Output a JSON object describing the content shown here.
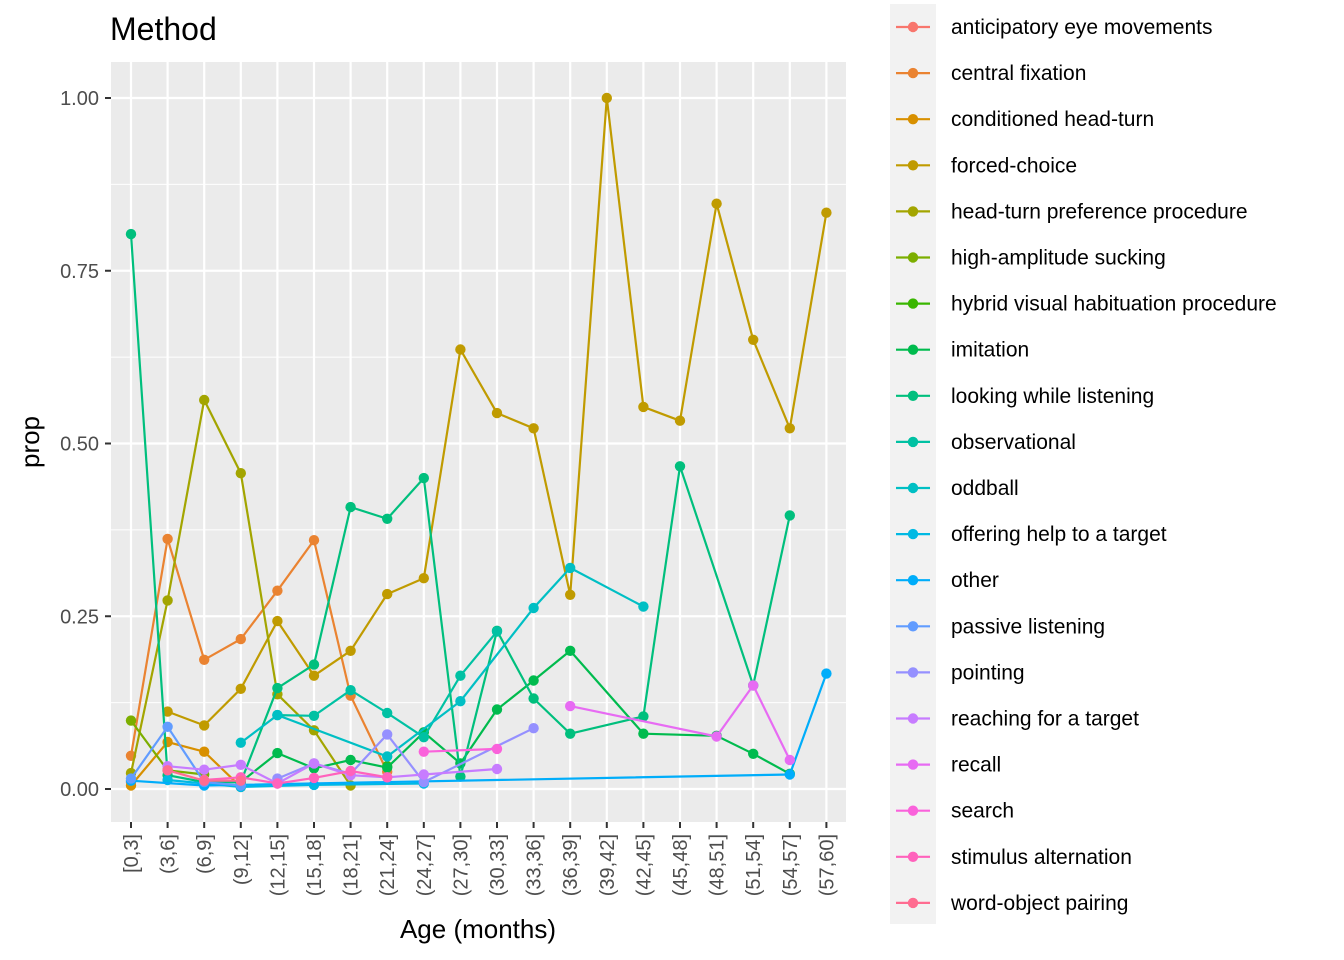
{
  "chart_data": {
    "type": "line",
    "title": "Method",
    "xlabel": "Age (months)",
    "ylabel": "prop",
    "categories": [
      "[0,3]",
      "(3,6]",
      "(6,9]",
      "(9,12]",
      "(12,15]",
      "(15,18]",
      "(18,21]",
      "(21,24]",
      "(24,27]",
      "(27,30]",
      "(30,33]",
      "(33,36]",
      "(36,39]",
      "(39,42]",
      "(42,45]",
      "(45,48]",
      "(48,51]",
      "(51,54]",
      "(54,57]",
      "(57,60]"
    ],
    "y_ticks": [
      "0.00",
      "0.25",
      "0.50",
      "0.75",
      "1.00"
    ],
    "ylim": [
      0,
      1
    ],
    "grid": true,
    "legend_position": "right",
    "series": [
      {
        "name": "anticipatory eye movements",
        "color": "#F8766D",
        "points": [
          [
            "[0,3]",
            0.01
          ]
        ]
      },
      {
        "name": "central fixation",
        "color": "#EA8331",
        "points": [
          [
            "[0,3]",
            0.048
          ],
          [
            "(3,6]",
            0.362
          ],
          [
            "(6,9]",
            0.187
          ],
          [
            "(9,12]",
            0.217
          ],
          [
            "(12,15]",
            0.287
          ],
          [
            "(15,18]",
            0.36
          ],
          [
            "(18,21]",
            0.135
          ],
          [
            "(21,24]",
            0.025
          ]
        ]
      },
      {
        "name": "conditioned head-turn",
        "color": "#D89000",
        "points": [
          [
            "[0,3]",
            0.005
          ],
          [
            "(3,6]",
            0.068
          ],
          [
            "(6,9]",
            0.054
          ],
          [
            "(9,12]",
            0.003
          ]
        ]
      },
      {
        "name": "forced-choice",
        "color": "#C09B00",
        "points": [
          [
            "(3,6]",
            0.112
          ],
          [
            "(6,9]",
            0.092
          ],
          [
            "(9,12]",
            0.145
          ],
          [
            "(12,15]",
            0.243
          ],
          [
            "(15,18]",
            0.164
          ],
          [
            "(18,21]",
            0.2
          ],
          [
            "(21,24]",
            0.282
          ],
          [
            "(24,27]",
            0.305
          ],
          [
            "(27,30]",
            0.636
          ],
          [
            "(30,33]",
            0.544
          ],
          [
            "(33,36]",
            0.522
          ],
          [
            "(36,39]",
            0.281
          ],
          [
            "(39,42]",
            1.0
          ],
          [
            "(42,45]",
            0.553
          ],
          [
            "(45,48]",
            0.533
          ],
          [
            "(48,51]",
            0.847
          ],
          [
            "(51,54]",
            0.65
          ],
          [
            "(54,57]",
            0.522
          ],
          [
            "(57,60]",
            0.834
          ]
        ]
      },
      {
        "name": "head-turn preference procedure",
        "color": "#A3A500",
        "points": [
          [
            "[0,3]",
            0.023
          ],
          [
            "(3,6]",
            0.273
          ],
          [
            "(6,9]",
            0.563
          ],
          [
            "(9,12]",
            0.457
          ],
          [
            "(12,15]",
            0.137
          ],
          [
            "(15,18]",
            0.085
          ],
          [
            "(18,21]",
            0.005
          ]
        ]
      },
      {
        "name": "high-amplitude sucking",
        "color": "#7CAE00",
        "points": [
          [
            "[0,3]",
            0.099
          ],
          [
            "(3,6]",
            0.027
          ],
          [
            "(6,9]",
            0.021
          ]
        ]
      },
      {
        "name": "hybrid visual habituation procedure",
        "color": "#39B600",
        "points": [
          [
            "(21,24]",
            0.033
          ]
        ]
      },
      {
        "name": "imitation",
        "color": "#00BB4E",
        "points": [
          [
            "(9,12]",
            0.01
          ],
          [
            "(12,15]",
            0.052
          ],
          [
            "(15,18]",
            0.03
          ],
          [
            "(18,21]",
            0.042
          ],
          [
            "(21,24]",
            0.031
          ],
          [
            "(24,27]",
            0.082
          ],
          [
            "(27,30]",
            0.037
          ],
          [
            "(30,33]",
            0.115
          ],
          [
            "(33,36]",
            0.157
          ],
          [
            "(36,39]",
            0.2
          ],
          [
            "(42,45]",
            0.08
          ],
          [
            "(48,51]",
            0.077
          ],
          [
            "(51,54]",
            0.051
          ],
          [
            "(54,57]",
            0.022
          ]
        ]
      },
      {
        "name": "looking while listening",
        "color": "#00BF7D",
        "points": [
          [
            "[0,3]",
            0.803
          ],
          [
            "(3,6]",
            0.02
          ],
          [
            "(6,9]",
            0.01
          ],
          [
            "(9,12]",
            0.01
          ],
          [
            "(12,15]",
            0.146
          ],
          [
            "(15,18]",
            0.18
          ],
          [
            "(18,21]",
            0.408
          ],
          [
            "(21,24]",
            0.391
          ],
          [
            "(24,27]",
            0.45
          ],
          [
            "(27,30]",
            0.018
          ],
          [
            "(30,33]",
            0.229
          ],
          [
            "(33,36]",
            0.131
          ],
          [
            "(36,39]",
            0.08
          ],
          [
            "(42,45]",
            0.105
          ],
          [
            "(45,48]",
            0.467
          ],
          [
            "(51,54]",
            0.15
          ],
          [
            "(54,57]",
            0.396
          ]
        ]
      },
      {
        "name": "observational",
        "color": "#00C1A3",
        "points": [
          [
            "(12,15]",
            0.107
          ],
          [
            "(15,18]",
            0.106
          ],
          [
            "(18,21]",
            0.143
          ],
          [
            "(21,24]",
            0.11
          ],
          [
            "(24,27]",
            0.075
          ],
          [
            "(27,30]",
            0.164
          ],
          [
            "(30,33]",
            0.228
          ]
        ]
      },
      {
        "name": "oddball",
        "color": "#00BFC4",
        "points": [
          [
            "(9,12]",
            0.067
          ],
          [
            "(12,15]",
            0.107
          ],
          [
            "(21,24]",
            0.047
          ],
          [
            "(27,30]",
            0.127
          ],
          [
            "(33,36]",
            0.262
          ],
          [
            "(36,39]",
            0.32
          ],
          [
            "(42,45]",
            0.264
          ]
        ]
      },
      {
        "name": "offering help to a target",
        "color": "#00B9E3",
        "points": [
          [
            "(3,6]",
            0.013
          ],
          [
            "(6,9]",
            0.008
          ],
          [
            "(9,12]",
            0.003
          ],
          [
            "(15,18]",
            0.006
          ],
          [
            "(24,27]",
            0.008
          ]
        ]
      },
      {
        "name": "other",
        "color": "#00ADFA",
        "points": [
          [
            "[0,3]",
            0.012
          ],
          [
            "(6,9]",
            0.005
          ],
          [
            "(54,57]",
            0.021
          ],
          [
            "(57,60]",
            0.167
          ]
        ]
      },
      {
        "name": "passive listening",
        "color": "#619CFF",
        "points": [
          [
            "[0,3]",
            0.015
          ],
          [
            "(3,6]",
            0.09
          ],
          [
            "(6,9]",
            0.01
          ],
          [
            "(9,12]",
            0.005
          ]
        ]
      },
      {
        "name": "pointing",
        "color": "#9590FF",
        "points": [
          [
            "(12,15]",
            0.015
          ],
          [
            "(15,18]",
            0.037
          ],
          [
            "(18,21]",
            0.022
          ],
          [
            "(21,24]",
            0.079
          ],
          [
            "(24,27]",
            0.01
          ],
          [
            "(33,36]",
            0.088
          ]
        ]
      },
      {
        "name": "reaching for a target",
        "color": "#C77CFF",
        "points": [
          [
            "(3,6]",
            0.033
          ],
          [
            "(6,9]",
            0.028
          ],
          [
            "(9,12]",
            0.035
          ],
          [
            "(12,15]",
            0.008
          ],
          [
            "(15,18]",
            0.037
          ],
          [
            "(18,21]",
            0.02
          ],
          [
            "(21,24]",
            0.017
          ],
          [
            "(24,27]",
            0.021
          ],
          [
            "(30,33]",
            0.029
          ]
        ]
      },
      {
        "name": "recall",
        "color": "#E76BF3",
        "points": [
          [
            "(36,39]",
            0.12
          ],
          [
            "(48,51]",
            0.076
          ],
          [
            "(51,54]",
            0.15
          ],
          [
            "(54,57]",
            0.042
          ]
        ]
      },
      {
        "name": "search",
        "color": "#FA62DB",
        "points": [
          [
            "(24,27]",
            0.054
          ],
          [
            "(30,33]",
            0.058
          ]
        ]
      },
      {
        "name": "stimulus alternation",
        "color": "#FF62BC",
        "points": [
          [
            "(6,9]",
            0.013
          ],
          [
            "(9,12]",
            0.017
          ],
          [
            "(12,15]",
            0.008
          ],
          [
            "(15,18]",
            0.016
          ],
          [
            "(18,21]",
            0.026
          ],
          [
            "(21,24]",
            0.017
          ]
        ]
      },
      {
        "name": "word-object pairing",
        "color": "#FF6C91",
        "points": [
          [
            "(3,6]",
            0.027
          ],
          [
            "(6,9]",
            0.012
          ],
          [
            "(9,12]",
            0.012
          ]
        ]
      }
    ]
  }
}
